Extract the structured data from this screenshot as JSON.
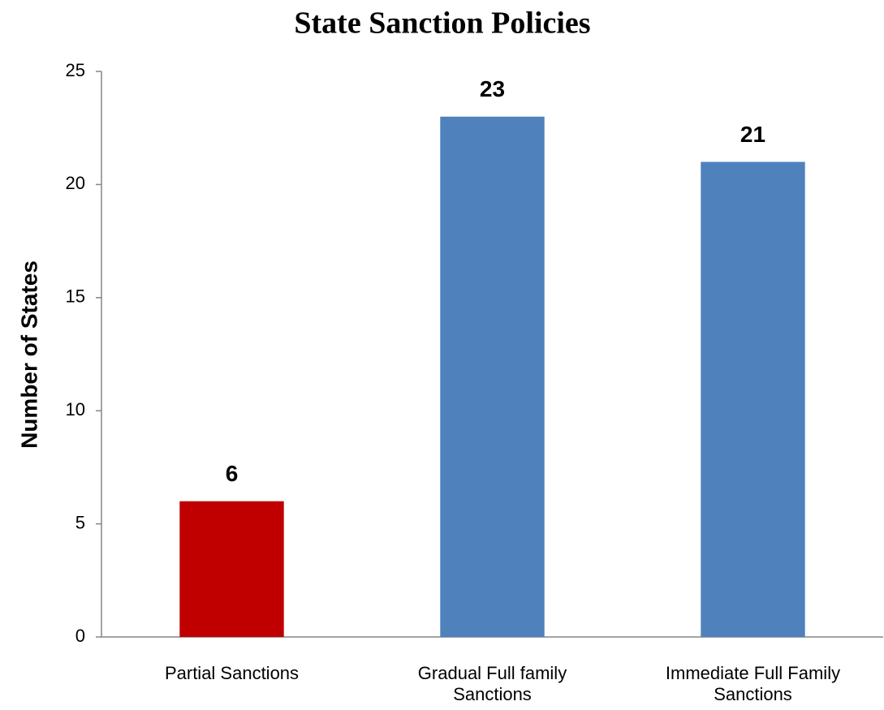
{
  "chart_data": {
    "type": "bar",
    "title": "State Sanction Policies",
    "y_label": "Number of States",
    "categories": [
      "Partial Sanctions",
      "Gradual Full family Sanctions",
      "Immediate Full Family Sanctions"
    ],
    "values": [
      6,
      23,
      21
    ],
    "colors": [
      "#c00000",
      "#4f81bd",
      "#4f81bd"
    ],
    "ylim": [
      0,
      25
    ],
    "yticks": [
      0,
      5,
      10,
      15,
      20,
      25
    ],
    "grid": false
  }
}
